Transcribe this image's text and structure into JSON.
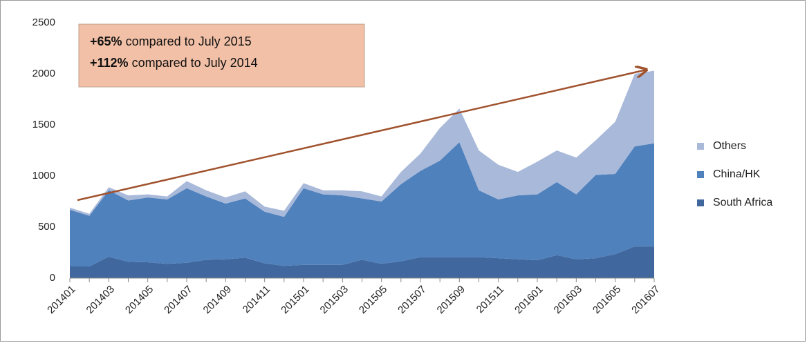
{
  "chart_data": {
    "type": "stacked_area",
    "categories": [
      "201401",
      null,
      "201403",
      null,
      "201405",
      null,
      "201407",
      null,
      "201409",
      null,
      "201411",
      null,
      "201501",
      null,
      "201503",
      null,
      "201505",
      null,
      "201507",
      null,
      "201509",
      null,
      "201511",
      null,
      "201601",
      null,
      "201603",
      null,
      "201605",
      null,
      "201607"
    ],
    "series": [
      {
        "name": "South Africa",
        "color": "#41689e",
        "values": [
          115,
          115,
          210,
          160,
          155,
          140,
          150,
          180,
          185,
          200,
          145,
          120,
          130,
          130,
          130,
          180,
          140,
          165,
          205,
          205,
          205,
          205,
          195,
          185,
          175,
          225,
          185,
          195,
          235,
          310,
          310
        ]
      },
      {
        "name": "China/HK",
        "color": "#4f81bd",
        "values": [
          555,
          495,
          650,
          600,
          635,
          630,
          730,
          620,
          545,
          580,
          505,
          480,
          750,
          690,
          680,
          600,
          610,
          755,
          845,
          945,
          1125,
          655,
          575,
          625,
          645,
          715,
          635,
          815,
          785,
          980,
          1010
        ]
      },
      {
        "name": "Others",
        "color": "#a9b9d9",
        "values": [
          20,
          20,
          30,
          50,
          30,
          30,
          70,
          60,
          60,
          70,
          50,
          60,
          50,
          40,
          50,
          70,
          50,
          120,
          170,
          320,
          330,
          390,
          340,
          230,
          320,
          310,
          360,
          340,
          510,
          710,
          710
        ]
      }
    ],
    "ylim": [
      0,
      2500
    ],
    "yticks": [
      0,
      500,
      1000,
      1500,
      2000,
      2500
    ],
    "annotations": [
      {
        "bold": "+65%",
        "text": "compared to July 2015"
      },
      {
        "bold": "+112%",
        "text": "compared to July 2014"
      }
    ],
    "legend": "right"
  }
}
